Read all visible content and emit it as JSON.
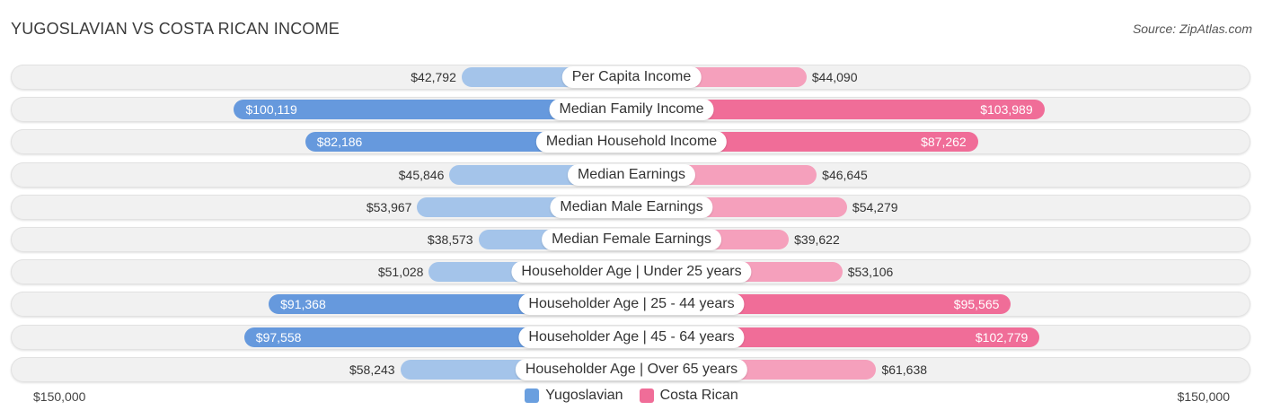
{
  "title": "YUGOSLAVIAN VS COSTA RICAN INCOME",
  "source": "Source: ZipAtlas.com",
  "colors": {
    "left_light": "#a4c4ea",
    "left_strong": "#6699dd",
    "right_light": "#f5a0bc",
    "right_strong": "#f06d98"
  },
  "chart_data": {
    "type": "bar",
    "orientation": "horizontal-diverging",
    "max": 150000,
    "axis_left_label": "$150,000",
    "axis_right_label": "$150,000",
    "legend": [
      {
        "name": "Yugoslavian",
        "color": "#6a9fdf"
      },
      {
        "name": "Costa Rican",
        "color": "#f06d98"
      }
    ],
    "categories": [
      {
        "label": "Per Capita Income",
        "left": 42792,
        "left_label": "$42,792",
        "right": 44090,
        "right_label": "$44,090"
      },
      {
        "label": "Median Family Income",
        "left": 100119,
        "left_label": "$100,119",
        "right": 103989,
        "right_label": "$103,989"
      },
      {
        "label": "Median Household Income",
        "left": 82186,
        "left_label": "$82,186",
        "right": 87262,
        "right_label": "$87,262"
      },
      {
        "label": "Median Earnings",
        "left": 45846,
        "left_label": "$45,846",
        "right": 46645,
        "right_label": "$46,645"
      },
      {
        "label": "Median Male Earnings",
        "left": 53967,
        "left_label": "$53,967",
        "right": 54279,
        "right_label": "$54,279"
      },
      {
        "label": "Median Female Earnings",
        "left": 38573,
        "left_label": "$38,573",
        "right": 39622,
        "right_label": "$39,622"
      },
      {
        "label": "Householder Age | Under 25 years",
        "left": 51028,
        "left_label": "$51,028",
        "right": 53106,
        "right_label": "$53,106"
      },
      {
        "label": "Householder Age | 25 - 44 years",
        "left": 91368,
        "left_label": "$91,368",
        "right": 95565,
        "right_label": "$95,565"
      },
      {
        "label": "Householder Age | 45 - 64 years",
        "left": 97558,
        "left_label": "$97,558",
        "right": 102779,
        "right_label": "$102,779"
      },
      {
        "label": "Householder Age | Over 65 years",
        "left": 58243,
        "left_label": "$58,243",
        "right": 61638,
        "right_label": "$61,638"
      }
    ]
  }
}
